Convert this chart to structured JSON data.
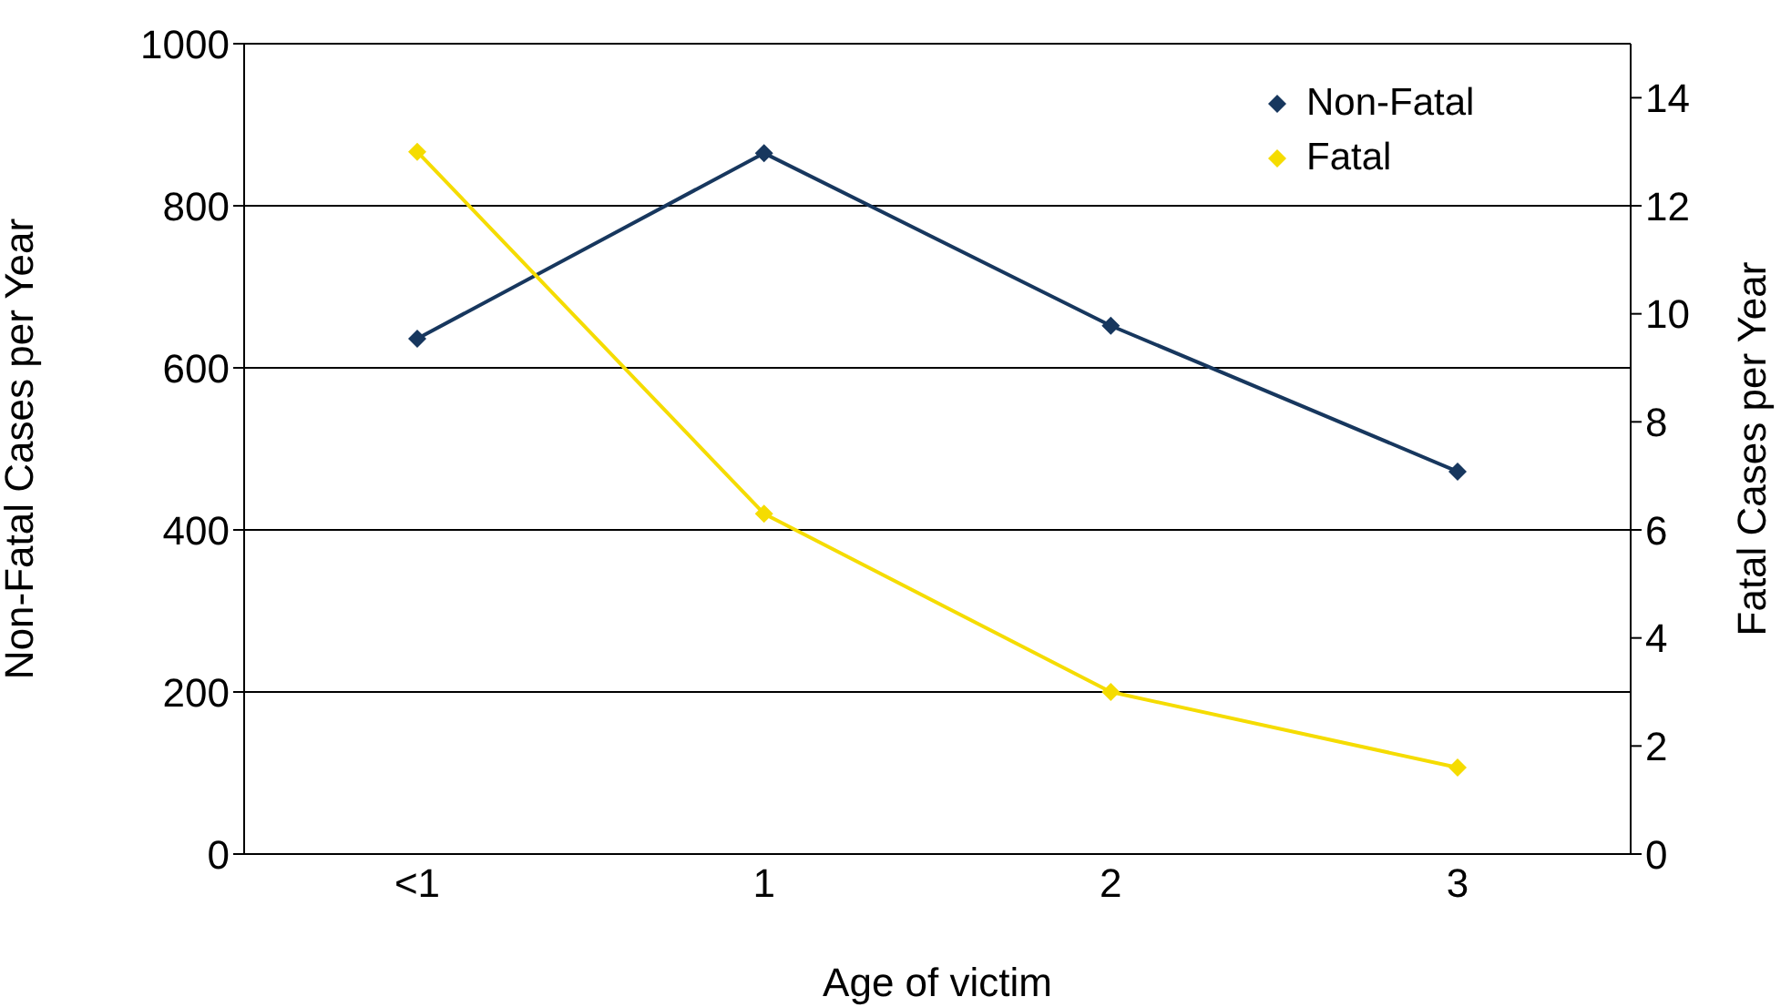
{
  "chart_data": {
    "type": "line",
    "xlabel": "Age of victim",
    "ylabel": "Non-Fatal Cases per Year",
    "y2label": "Fatal Cases per Year",
    "categories": [
      "<1",
      "1",
      "2",
      "3"
    ],
    "series": [
      {
        "name": "Non-Fatal",
        "color": "#17375e",
        "values": [
          636,
          865,
          652,
          472
        ]
      },
      {
        "name": "Fatal",
        "color": "#f5dc00",
        "values": [
          13,
          6.3,
          3,
          1.6
        ],
        "axis": "y2"
      }
    ],
    "ylim": [
      0,
      1000
    ],
    "yticks": [
      0,
      200,
      400,
      600,
      800,
      1000
    ],
    "y2lim": [
      0,
      15
    ],
    "y2ticks": [
      0,
      2,
      4,
      6,
      8,
      10,
      12,
      14
    ],
    "grid": "y",
    "legend": "top right",
    "marker": "diamond",
    "line_style": "solid"
  }
}
